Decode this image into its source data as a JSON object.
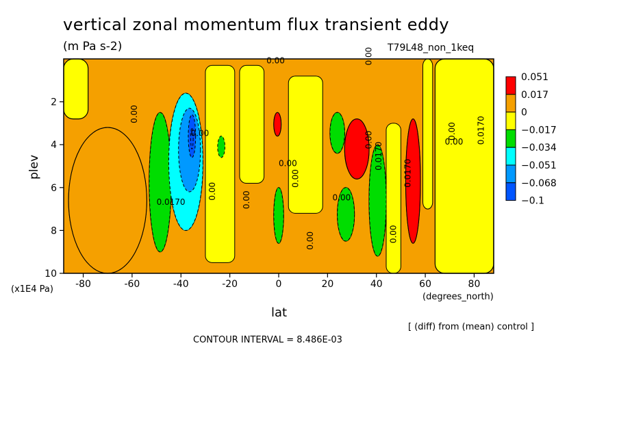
{
  "chart_data": {
    "type": "heatmap",
    "title": "vertical zonal momentum flux transient eddy",
    "units": "(m Pa s-2)",
    "run_label": "T79L48_non_1keq",
    "xlabel": "lat",
    "x_units": "(degrees_north)",
    "ylabel": "plev",
    "y_scale_note": "(x1E4 Pa)",
    "xlim": [
      -88,
      88
    ],
    "ylim": [
      10,
      0
    ],
    "x_ticks": [
      "-80",
      "-60",
      "-40",
      "-20",
      "0",
      "20",
      "40",
      "60",
      "80"
    ],
    "y_ticks": [
      "2",
      "4",
      "6",
      "8",
      "10"
    ],
    "colorbar": {
      "labels": [
        "0.051",
        "0.017",
        "0",
        "−0.017",
        "−0.034",
        "−0.051",
        "−0.068",
        "−0.1"
      ],
      "colors": [
        "#ff0000",
        "#f5a000",
        "#ffff00",
        "#00dd00",
        "#00ffff",
        "#0099ff",
        "#0055ff"
      ]
    },
    "contour_labels": [
      "0.00",
      "0.00",
      "0.00",
      "0.00",
      "0.00",
      "0.00",
      "0.00",
      "0.00",
      "0.00",
      "0.00",
      "0.00",
      "0.00",
      "0.00",
      "0.00",
      "0.0170",
      "0.0170",
      "0.0170",
      "0.0170"
    ],
    "regions": [
      {
        "lat": [
          -88,
          -78
        ],
        "plev": [
          0,
          2.8
        ],
        "level": "0"
      },
      {
        "lat": [
          -86,
          -54
        ],
        "plev": [
          3.2,
          10
        ],
        "level": "0.017"
      },
      {
        "lat": [
          -53,
          -44
        ],
        "plev": [
          2.5,
          9.0
        ],
        "level": "-0.017"
      },
      {
        "lat": [
          -45,
          -31
        ],
        "plev": [
          1.6,
          8.0
        ],
        "level": "-0.034"
      },
      {
        "lat": [
          -41,
          -32
        ],
        "plev": [
          2.3,
          6.2
        ],
        "level": "-0.051"
      },
      {
        "lat": [
          -37,
          -34
        ],
        "plev": [
          2.6,
          4.6
        ],
        "level": "-0.068"
      },
      {
        "lat": [
          -36,
          -35
        ],
        "plev": [
          3.2,
          4.2
        ],
        "level": "-0.1"
      },
      {
        "lat": [
          -25,
          -22
        ],
        "plev": [
          3.6,
          4.6
        ],
        "level": "-0.017"
      },
      {
        "lat": [
          -2,
          2
        ],
        "plev": [
          6.0,
          8.6
        ],
        "level": "-0.017"
      },
      {
        "lat": [
          -2,
          1
        ],
        "plev": [
          2.5,
          3.6
        ],
        "level": "0.051"
      },
      {
        "lat": [
          21,
          27
        ],
        "plev": [
          2.5,
          4.4
        ],
        "level": "-0.017"
      },
      {
        "lat": [
          27,
          37
        ],
        "plev": [
          2.8,
          5.6
        ],
        "level": "0.051"
      },
      {
        "lat": [
          37,
          44
        ],
        "plev": [
          4.0,
          9.2
        ],
        "level": "-0.017"
      },
      {
        "lat": [
          24,
          31
        ],
        "plev": [
          6.0,
          8.5
        ],
        "level": "-0.017"
      },
      {
        "lat": [
          52,
          58
        ],
        "plev": [
          2.8,
          8.6
        ],
        "level": "0.051"
      },
      {
        "lat": [
          64,
          88
        ],
        "plev": [
          0,
          10
        ],
        "level": "0"
      }
    ],
    "contour_interval_text": "CONTOUR INTERVAL = 8.486E-03",
    "note": "[ (diff) from (mean) control ]"
  }
}
